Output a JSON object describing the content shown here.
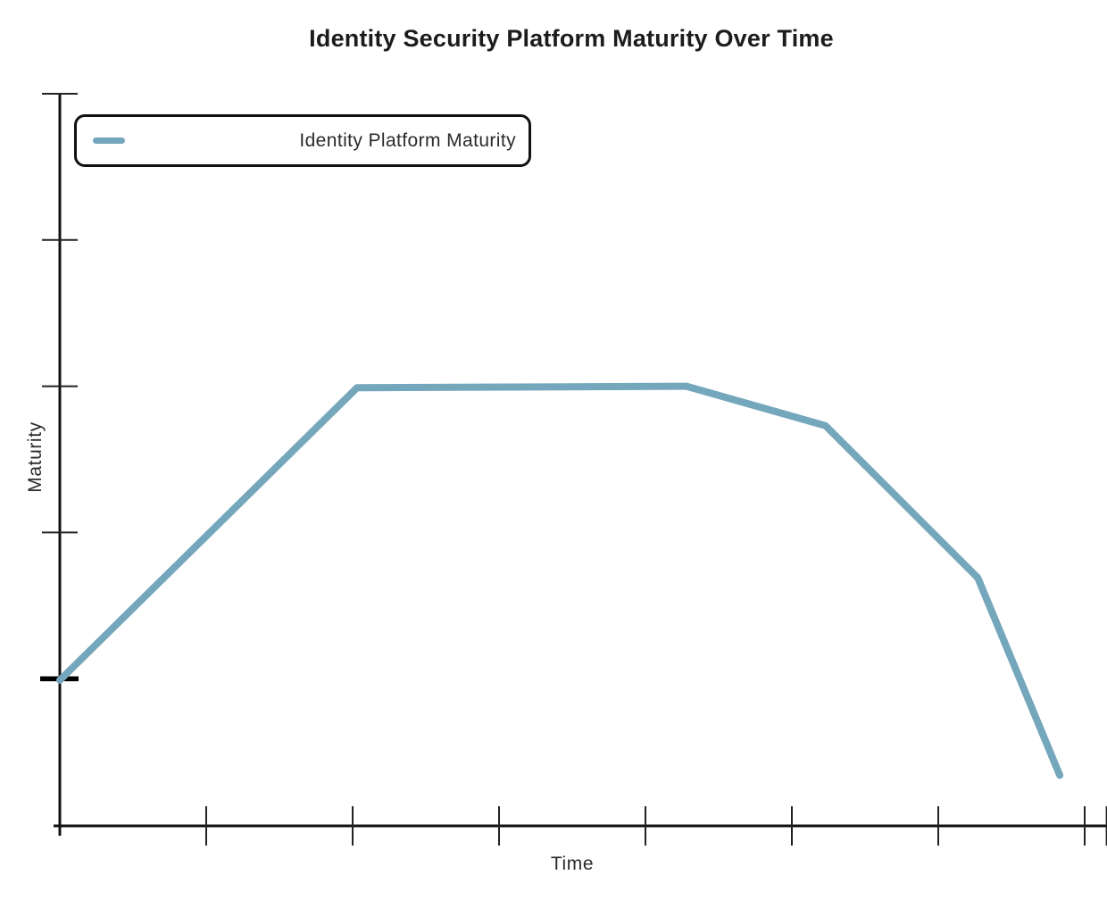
{
  "chart_data": {
    "type": "line",
    "title": "Identity Security Platform Maturity Over Time",
    "xlabel": "Time",
    "ylabel": "Maturity",
    "xlim": [
      0,
      7.15
    ],
    "ylim": [
      0,
      5
    ],
    "x_ticks": [
      1,
      2,
      3,
      4,
      5,
      6,
      7
    ],
    "y_ticks": [
      1,
      2,
      3,
      4,
      5
    ],
    "x_tick_labels": [],
    "y_tick_labels": [],
    "emphasized_y_tick": 1,
    "grid": "off",
    "legend_position": "top-left-boxed",
    "series": [
      {
        "name": "Identity Platform Maturity",
        "color": "#74a6bc",
        "x": [
          0,
          2.03,
          4.28,
          5.23,
          6.27,
          6.83
        ],
        "y": [
          0.99,
          2.99,
          3.0,
          2.73,
          1.69,
          0.34
        ]
      }
    ]
  },
  "colors": {
    "axis": "#111111",
    "tick": "#222222",
    "text": "#2b2b2b",
    "title": "#1c1c1c",
    "series": "#74a6bc"
  }
}
